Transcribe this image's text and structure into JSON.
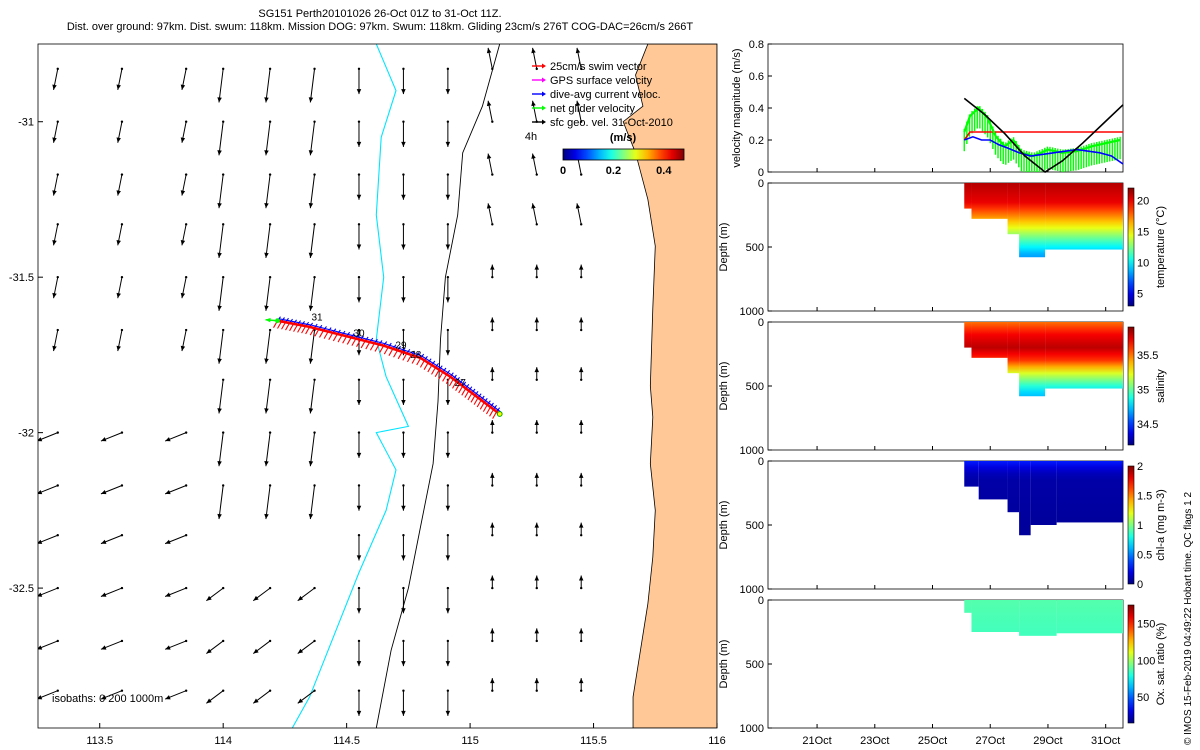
{
  "header": {
    "line1": "SG151 Perth20101026 26-Oct 01Z to 31-Oct 11Z.",
    "line2": "Dist. over ground: 97km. Dist. swum: 118km. Mission DOG: 97km. Swum: 118km. Gliding 23cm/s 276T COG-DAC=26cm/s 266T"
  },
  "credit": "© IMOS 15-Feb-2019 04:49:22 Hobart time. QC flags 1  2",
  "chart_data": [
    {
      "type": "map",
      "xlim": [
        113.25,
        116.0
      ],
      "ylim": [
        -32.95,
        -30.75
      ],
      "x_ticks": [
        "113.5",
        "114",
        "114.5",
        "115",
        "115.5",
        "116"
      ],
      "x_tick_values": [
        113.5,
        114.0,
        114.5,
        115.0,
        115.5,
        116.0
      ],
      "y_ticks": [
        "-31",
        "-31.5",
        "-32",
        "-32.5"
      ],
      "y_tick_values": [
        -31.0,
        -31.5,
        -32.0,
        -32.5
      ],
      "legend": [
        {
          "label": "25cm/s swim vector",
          "color": "#ff0000"
        },
        {
          "label": "GPS surface velocity",
          "color": "#ff00ff"
        },
        {
          "label": "dive-avg current veloc.",
          "color": "#0000ff"
        },
        {
          "label": "net glider velocity",
          "color": "#00ff00"
        },
        {
          "label": "sfc geo. vel. 31-Oct-2010",
          "color": "#000000"
        }
      ],
      "colorbar": {
        "title": "(m/s)",
        "ticks": [
          "0",
          "0.2",
          "0.4"
        ],
        "tick_values": [
          0,
          0.2,
          0.4
        ],
        "range": [
          0,
          0.48
        ]
      },
      "isobaths_label": "isobaths: 0   200  1000m",
      "land_color": "#ffc896",
      "coastline": [
        [
          115.95,
          -30.75
        ],
        [
          115.72,
          -30.75
        ],
        [
          115.67,
          -30.85
        ],
        [
          115.7,
          -30.95
        ],
        [
          115.62,
          -31.0
        ],
        [
          115.67,
          -31.1
        ],
        [
          115.72,
          -31.25
        ],
        [
          115.75,
          -31.4
        ],
        [
          115.74,
          -31.6
        ],
        [
          115.73,
          -31.85
        ],
        [
          115.74,
          -31.95
        ],
        [
          115.73,
          -32.1
        ],
        [
          115.75,
          -32.25
        ],
        [
          115.74,
          -32.4
        ],
        [
          115.72,
          -32.55
        ],
        [
          115.69,
          -32.7
        ],
        [
          115.66,
          -32.85
        ],
        [
          115.66,
          -32.95
        ]
      ],
      "isobath_200": [
        [
          115.12,
          -30.75
        ],
        [
          115.05,
          -30.95
        ],
        [
          114.97,
          -31.1
        ],
        [
          114.95,
          -31.3
        ],
        [
          114.9,
          -31.5
        ],
        [
          114.88,
          -31.7
        ],
        [
          114.87,
          -31.9
        ],
        [
          114.85,
          -32.1
        ],
        [
          114.8,
          -32.3
        ],
        [
          114.75,
          -32.5
        ],
        [
          114.68,
          -32.7
        ],
        [
          114.62,
          -32.95
        ]
      ],
      "isobath_1000": [
        [
          114.62,
          -30.75
        ],
        [
          114.7,
          -30.9
        ],
        [
          114.64,
          -31.05
        ],
        [
          114.62,
          -31.3
        ],
        [
          114.65,
          -31.5
        ],
        [
          114.62,
          -31.7
        ],
        [
          114.66,
          -31.82
        ],
        [
          114.75,
          -31.98
        ],
        [
          114.62,
          -32.0
        ],
        [
          114.7,
          -32.12
        ],
        [
          114.66,
          -32.25
        ],
        [
          114.55,
          -32.45
        ],
        [
          114.45,
          -32.65
        ],
        [
          114.35,
          -32.85
        ],
        [
          114.28,
          -32.95
        ]
      ],
      "ref_arrow_label": "4h",
      "dive_labels": [
        {
          "text": "31",
          "x": 114.38,
          "y": -31.64
        },
        {
          "text": "30",
          "x": 114.55,
          "y": -31.69
        },
        {
          "text": "29",
          "x": 114.72,
          "y": -31.73
        },
        {
          "text": "28",
          "x": 114.78,
          "y": -31.76
        },
        {
          "text": "27",
          "x": 114.96,
          "y": -31.85
        }
      ],
      "track": [
        [
          114.22,
          -31.64
        ],
        [
          114.35,
          -31.66
        ],
        [
          114.5,
          -31.69
        ],
        [
          114.65,
          -31.72
        ],
        [
          114.8,
          -31.76
        ],
        [
          114.92,
          -31.82
        ],
        [
          115.02,
          -31.88
        ],
        [
          115.12,
          -31.94
        ]
      ],
      "track_start": [
        114.22,
        -31.64
      ],
      "track_end": [
        115.12,
        -31.94
      ],
      "current_field": [
        {
          "lon_min": 113.3,
          "lon_max": 113.9,
          "lat_min": -31.8,
          "lat_max": -30.8,
          "u": -0.01,
          "v": -0.05
        },
        {
          "lon_min": 113.3,
          "lon_max": 113.9,
          "lat_min": -32.9,
          "lat_max": -31.85,
          "u": -0.05,
          "v": -0.02
        },
        {
          "lon_min": 114.0,
          "lon_max": 114.45,
          "lat_min": -32.3,
          "lat_max": -30.8,
          "u": -0.01,
          "v": -0.08
        },
        {
          "lon_min": 114.0,
          "lon_max": 114.45,
          "lat_min": -32.9,
          "lat_max": -32.35,
          "u": -0.04,
          "v": -0.03
        },
        {
          "lon_min": 114.5,
          "lon_max": 115.0,
          "lat_min": -32.9,
          "lat_max": -30.8,
          "u": 0.0,
          "v": -0.06
        },
        {
          "lon_min": 115.05,
          "lon_max": 115.55,
          "lat_min": -31.45,
          "lat_max": -30.8,
          "u": -0.01,
          "v": 0.05
        },
        {
          "lon_min": 115.05,
          "lon_max": 115.55,
          "lat_min": -32.9,
          "lat_max": -31.5,
          "u": 0.0,
          "v": 0.03
        }
      ]
    },
    {
      "type": "line",
      "ylabel": "velocity magnitude (m/s)",
      "ylim": [
        0,
        0.8
      ],
      "y_ticks": [
        "0",
        "0.2",
        "0.4",
        "0.6",
        "0.8"
      ],
      "x_ticks": [
        "21Oct",
        "23Oct",
        "25Oct",
        "27Oct",
        "29Oct",
        "31Oct"
      ],
      "x_tick_values": [
        21,
        23,
        25,
        27,
        29,
        31
      ],
      "xlim": [
        19.3,
        31.6
      ],
      "series": [
        {
          "color": "#ff0000",
          "x": [
            26.1,
            26.3,
            31.6
          ],
          "y": [
            0.2,
            0.25,
            0.25
          ]
        },
        {
          "color": "#00ff00",
          "x": [
            26.1,
            26.3,
            26.6,
            26.9,
            27.2,
            27.5,
            27.8,
            28.1,
            28.5,
            29.0,
            29.5,
            30.0,
            30.5,
            31.0,
            31.5
          ],
          "y": [
            0.25,
            0.35,
            0.4,
            0.34,
            0.22,
            0.16,
            0.2,
            0.12,
            0.1,
            0.14,
            0.12,
            0.13,
            0.16,
            0.18,
            0.2
          ]
        },
        {
          "color": "#0000ff",
          "x": [
            26.1,
            26.4,
            26.7,
            27.0,
            27.3,
            27.6,
            28.0,
            28.4,
            28.8,
            29.2,
            29.6,
            30.0,
            30.4,
            30.8,
            31.2,
            31.6
          ],
          "y": [
            0.2,
            0.22,
            0.2,
            0.2,
            0.17,
            0.15,
            0.12,
            0.1,
            0.11,
            0.12,
            0.13,
            0.14,
            0.13,
            0.12,
            0.1,
            0.05
          ]
        },
        {
          "color": "#000000",
          "x": [
            26.1,
            26.8,
            27.5,
            28.2,
            28.9,
            29.5,
            30.2,
            30.9,
            31.6
          ],
          "y": [
            0.46,
            0.36,
            0.24,
            0.1,
            0.0,
            0.07,
            0.18,
            0.3,
            0.42
          ]
        }
      ]
    },
    {
      "type": "heatmap",
      "variable": "temperature",
      "ylabel": "Depth (m)",
      "clabel": "temperature (°C)",
      "ylim": [
        1000,
        0
      ],
      "y_ticks": [
        "0",
        "500",
        "1000"
      ],
      "clim": [
        3,
        22
      ],
      "c_ticks": [
        "20",
        "15",
        "10",
        "5"
      ],
      "c_tick_values": [
        20,
        15,
        10,
        5
      ],
      "xlim": [
        19.3,
        31.6
      ],
      "profiles": [
        {
          "x_start": 26.1,
          "x_end": 26.35,
          "max_depth": 200
        },
        {
          "x_start": 26.35,
          "x_end": 27.6,
          "max_depth": 280
        },
        {
          "x_start": 27.6,
          "x_end": 28.0,
          "max_depth": 400
        },
        {
          "x_start": 28.0,
          "x_end": 28.9,
          "max_depth": 580
        },
        {
          "x_start": 28.9,
          "x_end": 31.6,
          "max_depth": 520
        }
      ],
      "colour_stops": [
        {
          "depth": 0,
          "value": 21
        },
        {
          "depth": 150,
          "value": 20
        },
        {
          "depth": 300,
          "value": 16
        },
        {
          "depth": 400,
          "value": 13
        },
        {
          "depth": 500,
          "value": 10
        },
        {
          "depth": 580,
          "value": 8
        }
      ]
    },
    {
      "type": "heatmap",
      "variable": "salinity",
      "ylabel": "Depth (m)",
      "clabel": "salinity",
      "ylim": [
        1000,
        0
      ],
      "y_ticks": [
        "0",
        "500",
        "1000"
      ],
      "clim": [
        34.2,
        35.9
      ],
      "c_ticks": [
        "35.5",
        "35",
        "34.5"
      ],
      "c_tick_values": [
        35.5,
        35.0,
        34.5
      ],
      "xlim": [
        19.3,
        31.6
      ],
      "profiles": [
        {
          "x_start": 26.1,
          "x_end": 26.35,
          "max_depth": 200
        },
        {
          "x_start": 26.35,
          "x_end": 27.6,
          "max_depth": 280
        },
        {
          "x_start": 27.6,
          "x_end": 28.0,
          "max_depth": 400
        },
        {
          "x_start": 28.0,
          "x_end": 28.9,
          "max_depth": 580
        },
        {
          "x_start": 28.9,
          "x_end": 31.6,
          "max_depth": 520
        }
      ],
      "colour_stops": [
        {
          "depth": 0,
          "value": 35.5
        },
        {
          "depth": 100,
          "value": 35.7
        },
        {
          "depth": 200,
          "value": 35.8
        },
        {
          "depth": 300,
          "value": 35.6
        },
        {
          "depth": 400,
          "value": 35.2
        },
        {
          "depth": 500,
          "value": 34.9
        },
        {
          "depth": 580,
          "value": 34.7
        }
      ]
    },
    {
      "type": "heatmap",
      "variable": "chl-a",
      "ylabel": "Depth (m)",
      "clabel": "chl-a (mg m-3)",
      "ylim": [
        1000,
        0
      ],
      "y_ticks": [
        "0",
        "500",
        "1000"
      ],
      "clim": [
        0,
        2
      ],
      "c_ticks": [
        "2",
        "1.5",
        "1",
        "0.5",
        "0"
      ],
      "c_tick_values": [
        2,
        1.5,
        1,
        0.5,
        0
      ],
      "xlim": [
        19.3,
        31.6
      ],
      "profiles": [
        {
          "x_start": 26.1,
          "x_end": 26.6,
          "max_depth": 200
        },
        {
          "x_start": 26.6,
          "x_end": 27.6,
          "max_depth": 300
        },
        {
          "x_start": 27.6,
          "x_end": 28.0,
          "max_depth": 400
        },
        {
          "x_start": 28.0,
          "x_end": 28.4,
          "max_depth": 580
        },
        {
          "x_start": 28.4,
          "x_end": 29.3,
          "max_depth": 500
        },
        {
          "x_start": 29.3,
          "x_end": 31.6,
          "max_depth": 480
        }
      ],
      "colour_stops": [
        {
          "depth": 0,
          "value": 0.3
        },
        {
          "depth": 40,
          "value": 0.2
        },
        {
          "depth": 120,
          "value": 0.08
        },
        {
          "depth": 580,
          "value": 0.05
        }
      ]
    },
    {
      "type": "heatmap",
      "variable": "oxygen saturation",
      "ylabel": "Depth (m)",
      "clabel": "Ox. sat. ratio (%)",
      "ylim": [
        1000,
        0
      ],
      "y_ticks": [
        "0",
        "500",
        "1000"
      ],
      "clim": [
        15,
        175
      ],
      "c_ticks": [
        "150",
        "100",
        "50"
      ],
      "c_tick_values": [
        150,
        100,
        50
      ],
      "xlim": [
        19.3,
        31.6
      ],
      "profiles": [
        {
          "x_start": 26.1,
          "x_end": 26.35,
          "max_depth": 100
        },
        {
          "x_start": 26.35,
          "x_end": 28.0,
          "max_depth": 250
        },
        {
          "x_start": 28.0,
          "x_end": 29.3,
          "max_depth": 280
        },
        {
          "x_start": 29.3,
          "x_end": 31.6,
          "max_depth": 260
        }
      ],
      "colour_stops": [
        {
          "depth": 0,
          "value": 88
        },
        {
          "depth": 300,
          "value": 85
        }
      ]
    }
  ]
}
